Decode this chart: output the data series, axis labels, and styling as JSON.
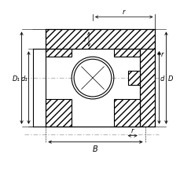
{
  "bg_color": "#ffffff",
  "line_color": "#000000",
  "fig_width": 2.3,
  "fig_height": 2.3,
  "dpi": 100,
  "labels": {
    "D1": "D₁",
    "d1": "d₁",
    "B": "B",
    "d": "d",
    "D": "D",
    "r": "r"
  }
}
